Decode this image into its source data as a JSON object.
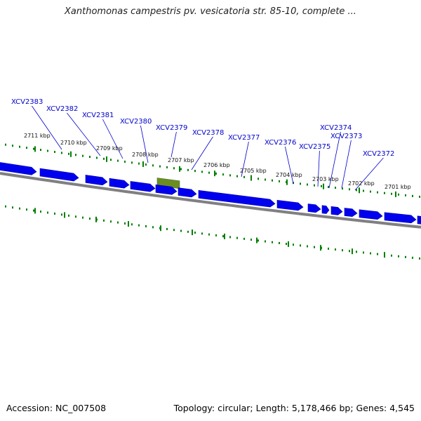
{
  "title": "Xanthomonas campestris pv. vesicatoria str. 85-10, complete ...",
  "footer": {
    "accession": "Accession: NC_007508",
    "summary": "Topology: circular; Length: 5,178,466 bp; Genes: 4,545"
  },
  "colors": {
    "gene": "#0000ee",
    "gene_highlight": "#6b8e23",
    "backbone": "#808080",
    "ticks": "#008000",
    "label_text": "#0000cc",
    "leader": "#0000cc"
  },
  "scale_labels": [
    "2711 kbp",
    "2710 kbp",
    "2709 kbp",
    "2708 kbp",
    "2707 kbp",
    "2706 kbp",
    "2705 kbp",
    "2704 kbp",
    "2703 kbp",
    "2702 kbp",
    "2701 kbp"
  ],
  "genes": [
    {
      "name": "XCV2383"
    },
    {
      "name": "XCV2382"
    },
    {
      "name": "XCV2381"
    },
    {
      "name": "XCV2380"
    },
    {
      "name": "XCV2379"
    },
    {
      "name": "XCV2378"
    },
    {
      "name": "XCV2377"
    },
    {
      "name": "XCV2376"
    },
    {
      "name": "XCV2375"
    },
    {
      "name": "XCV2374"
    },
    {
      "name": "XCV2373"
    },
    {
      "name": "XCV2372"
    }
  ]
}
